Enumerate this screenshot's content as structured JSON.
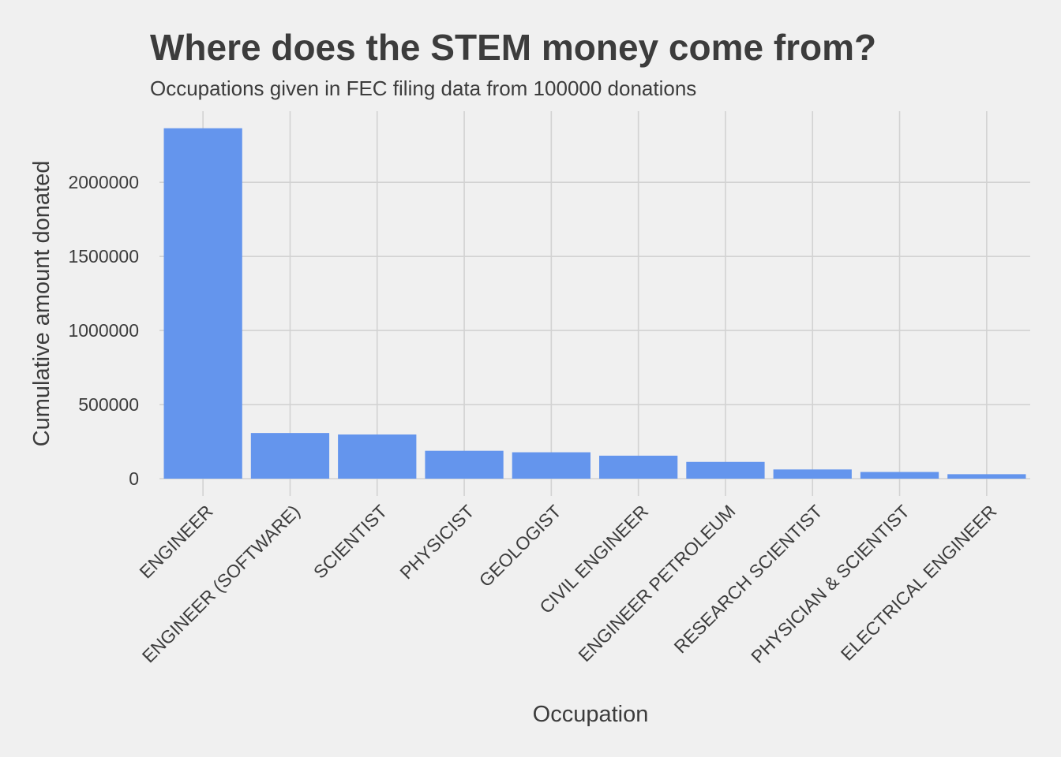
{
  "chart_data": {
    "type": "bar",
    "title": "Where does the STEM money come from?",
    "subtitle": "Occupations given in FEC filing data from 100000 donations",
    "xlabel": "Occupation",
    "ylabel": "Cumulative amount donated",
    "categories": [
      "ENGINEER",
      "ENGINEER (SOFTWARE)",
      "SCIENTIST",
      "PHYSICIST",
      "GEOLOGIST",
      "CIVIL ENGINEER",
      "ENGINEER PETROLEUM",
      "RESEARCH SCIENTIST",
      "PHYSICIAN & SCIENTIST",
      "ELECTRICAL ENGINEER"
    ],
    "values": [
      2365000,
      308000,
      298000,
      188000,
      178000,
      155000,
      113000,
      62000,
      45000,
      30000
    ],
    "yticks": [
      0,
      500000,
      1000000,
      1500000,
      2000000
    ],
    "ylim": [
      0,
      2480000
    ],
    "grid": true,
    "legend": "none",
    "bar_color": "#6495ed"
  }
}
